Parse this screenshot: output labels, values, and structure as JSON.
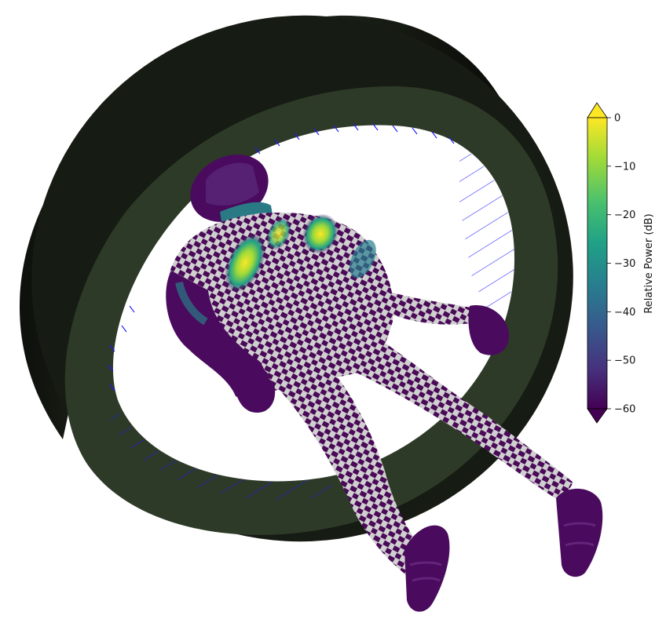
{
  "colorbar": {
    "label": "Relative Power (dB)",
    "ticks": [
      "0",
      "−10",
      "−20",
      "−30",
      "−40",
      "−50",
      "−60"
    ],
    "tick_values": [
      0,
      -10,
      -20,
      -30,
      -40,
      -50,
      -60
    ],
    "range": [
      -60,
      0
    ],
    "extend": "both",
    "colormap": "viridis",
    "colors": [
      "#440154",
      "#46327e",
      "#365c8d",
      "#277f8e",
      "#1fa187",
      "#4ac16d",
      "#a0da39",
      "#fde725"
    ]
  },
  "scene": {
    "ring_color": "#2e3a28",
    "ring_dark": "#121610",
    "antenna_color": "#1a1aff",
    "body_color": "#440154",
    "background": "#ffffff"
  }
}
